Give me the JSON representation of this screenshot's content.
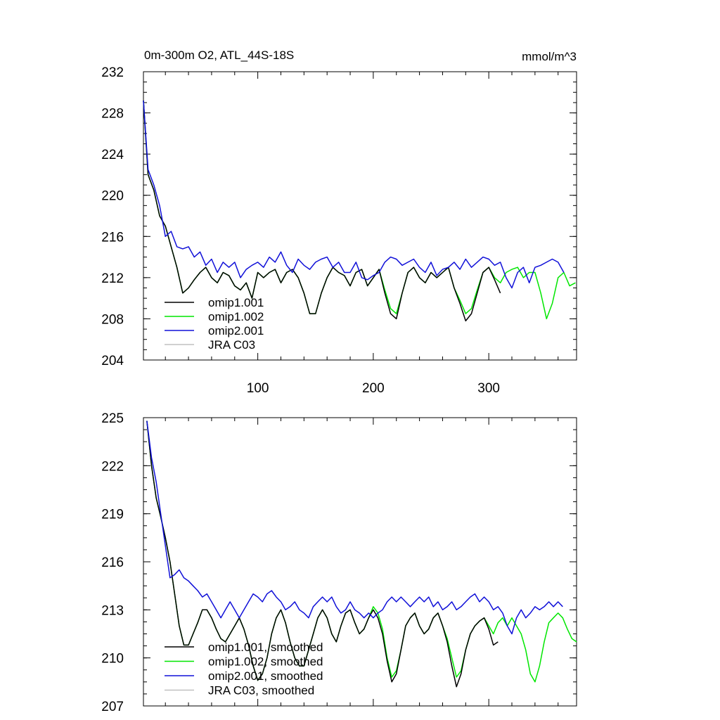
{
  "chart_data": [
    {
      "type": "line",
      "title": "0m-300m O2, ATL_44S-18S",
      "units": "mmol/m^3",
      "xlim": [
        1,
        376
      ],
      "ylim": [
        204,
        232
      ],
      "yticks": [
        "204",
        "208",
        "212",
        "216",
        "220",
        "224",
        "228",
        "232"
      ],
      "xticks": [
        "100",
        "200",
        "300"
      ],
      "legend": [
        "omip1.001",
        "omip1.002",
        "omip2.001",
        "JRA C03"
      ],
      "series": [
        {
          "name": "omip1.001",
          "color": "#000000",
          "x": [
            1,
            5,
            10,
            15,
            20,
            25,
            30,
            35,
            40,
            45,
            50,
            55,
            60,
            65,
            70,
            75,
            80,
            85,
            90,
            95,
            100,
            105,
            110,
            115,
            120,
            125,
            130,
            135,
            140,
            145,
            150,
            155,
            160,
            165,
            170,
            175,
            180,
            185,
            190,
            195,
            200,
            205,
            210,
            215,
            220,
            225,
            230,
            235,
            240,
            245,
            250,
            255,
            260,
            265,
            270,
            275,
            280,
            285,
            290,
            295,
            300,
            305,
            310
          ],
          "y": [
            229.2,
            222.0,
            220.5,
            218.0,
            217.0,
            215.0,
            213.0,
            210.5,
            211.0,
            211.8,
            212.5,
            213.0,
            212.0,
            211.5,
            212.5,
            212.2,
            211.2,
            210.8,
            211.5,
            210.0,
            212.5,
            212.0,
            212.5,
            212.8,
            211.5,
            212.5,
            212.8,
            212.0,
            210.5,
            208.5,
            208.5,
            210.5,
            212.0,
            213.0,
            212.5,
            212.2,
            211.2,
            212.5,
            212.8,
            211.2,
            212.0,
            212.8,
            210.5,
            208.5,
            208.0,
            210.5,
            212.5,
            213.0,
            212.0,
            211.5,
            212.5,
            212.0,
            212.5,
            213.0,
            211.0,
            209.5,
            207.8,
            208.5,
            210.5,
            212.5,
            213.0,
            211.8,
            210.5
          ]
        },
        {
          "name": "omip1.002",
          "color": "#00e600",
          "x": [
            1,
            5,
            10,
            15,
            20,
            25,
            30,
            35,
            40,
            45,
            50,
            55,
            60,
            65,
            70,
            75,
            80,
            85,
            90,
            95,
            100,
            105,
            110,
            115,
            120,
            125,
            130,
            135,
            140,
            145,
            150,
            155,
            160,
            165,
            170,
            175,
            180,
            185,
            190,
            195,
            200,
            205,
            210,
            215,
            220,
            225,
            230,
            235,
            240,
            245,
            250,
            255,
            260,
            265,
            270,
            275,
            280,
            285,
            290,
            295,
            300,
            305,
            310,
            315,
            320,
            325,
            330,
            335,
            340,
            345,
            350,
            355,
            360,
            365,
            370,
            375
          ],
          "y": [
            229.2,
            222.0,
            220.5,
            218.0,
            217.0,
            215.0,
            213.0,
            210.5,
            211.0,
            211.8,
            212.5,
            213.0,
            212.0,
            211.5,
            212.5,
            212.2,
            211.2,
            210.8,
            211.5,
            210.0,
            212.5,
            212.0,
            212.5,
            212.8,
            211.5,
            212.5,
            212.8,
            212.0,
            210.5,
            208.5,
            208.5,
            210.5,
            212.0,
            213.0,
            212.5,
            212.2,
            211.2,
            212.5,
            212.8,
            211.2,
            212.0,
            212.8,
            210.8,
            209.0,
            208.5,
            210.5,
            212.5,
            213.0,
            212.0,
            211.5,
            212.5,
            212.0,
            212.5,
            213.0,
            211.0,
            209.8,
            208.5,
            209.0,
            210.8,
            212.5,
            213.0,
            212.0,
            211.5,
            212.5,
            212.8,
            213.0,
            212.0,
            212.5,
            212.5,
            210.5,
            208.0,
            209.5,
            212.0,
            212.5,
            211.2,
            211.5
          ]
        },
        {
          "name": "omip2.001",
          "color": "#1010d8",
          "x": [
            1,
            5,
            10,
            15,
            20,
            25,
            30,
            35,
            40,
            45,
            50,
            55,
            60,
            65,
            70,
            75,
            80,
            85,
            90,
            95,
            100,
            105,
            110,
            115,
            120,
            125,
            130,
            135,
            140,
            145,
            150,
            155,
            160,
            165,
            170,
            175,
            180,
            185,
            190,
            195,
            200,
            205,
            210,
            215,
            220,
            225,
            230,
            235,
            240,
            245,
            250,
            255,
            260,
            265,
            270,
            275,
            280,
            285,
            290,
            295,
            300,
            305,
            310,
            315,
            320,
            325,
            330,
            335,
            340,
            345,
            350,
            355,
            360,
            365
          ],
          "y": [
            229.2,
            222.5,
            221.0,
            219.0,
            216.0,
            216.5,
            215.0,
            214.8,
            215.0,
            214.0,
            214.5,
            213.2,
            213.8,
            212.5,
            213.5,
            213.0,
            213.5,
            212.0,
            212.8,
            213.2,
            213.5,
            213.0,
            214.0,
            213.5,
            214.5,
            213.2,
            212.5,
            213.8,
            213.2,
            212.8,
            213.5,
            213.8,
            214.0,
            213.0,
            213.5,
            212.5,
            212.5,
            213.5,
            212.0,
            211.8,
            212.2,
            212.5,
            213.5,
            214.0,
            213.8,
            213.2,
            213.5,
            213.8,
            213.0,
            212.5,
            213.5,
            212.2,
            212.8,
            213.0,
            213.5,
            212.8,
            213.8,
            213.0,
            213.5,
            214.0,
            213.8,
            213.2,
            213.5,
            212.0,
            211.0,
            212.5,
            213.0,
            211.5,
            213.0,
            213.2,
            213.5,
            213.8,
            213.5,
            212.5
          ]
        },
        {
          "name": "JRA C03",
          "color": "#c0c0c0",
          "x": [],
          "y": []
        }
      ]
    },
    {
      "type": "line",
      "xlim": [
        1,
        376
      ],
      "ylim": [
        207,
        225
      ],
      "yticks": [
        "207",
        "210",
        "213",
        "216",
        "219",
        "222",
        "225"
      ],
      "legend": [
        "omip1.001, smoothed",
        "omip1.002, smoothed",
        "omip2.001, smoothed",
        "JRA C03, smoothed"
      ],
      "series": [
        {
          "name": "omip1.001, smoothed",
          "color": "#000000",
          "x": [
            4,
            8,
            12,
            16,
            20,
            24,
            28,
            32,
            36,
            40,
            44,
            48,
            52,
            56,
            60,
            64,
            68,
            72,
            76,
            80,
            84,
            88,
            92,
            96,
            100,
            104,
            108,
            112,
            116,
            120,
            124,
            128,
            132,
            136,
            140,
            144,
            148,
            152,
            156,
            160,
            164,
            168,
            172,
            176,
            180,
            184,
            188,
            192,
            196,
            200,
            204,
            208,
            212,
            216,
            220,
            224,
            228,
            232,
            236,
            240,
            244,
            248,
            252,
            256,
            260,
            264,
            268,
            272,
            276,
            280,
            284,
            288,
            292,
            296,
            300,
            304,
            308
          ],
          "y": [
            224.8,
            222.0,
            220.0,
            218.8,
            217.5,
            216.0,
            214.0,
            212.0,
            210.8,
            210.8,
            211.5,
            212.2,
            213.0,
            213.0,
            212.5,
            211.8,
            211.2,
            211.0,
            211.5,
            212.0,
            212.5,
            211.8,
            210.8,
            209.5,
            208.6,
            209.0,
            210.0,
            211.5,
            212.5,
            213.0,
            212.2,
            211.0,
            210.0,
            209.5,
            209.5,
            210.5,
            211.5,
            212.5,
            213.0,
            212.5,
            211.5,
            211.0,
            212.0,
            212.8,
            213.0,
            212.2,
            211.5,
            211.8,
            212.5,
            213.0,
            212.5,
            211.5,
            209.8,
            208.5,
            209.0,
            210.5,
            212.0,
            212.5,
            212.8,
            212.0,
            211.5,
            211.8,
            212.5,
            212.8,
            212.0,
            211.0,
            209.5,
            208.2,
            209.0,
            210.5,
            211.5,
            212.0,
            212.3,
            212.5,
            211.8,
            210.8,
            211.0
          ]
        },
        {
          "name": "omip1.002, smoothed",
          "color": "#00e600",
          "x": [
            4,
            8,
            12,
            16,
            20,
            24,
            28,
            32,
            36,
            40,
            44,
            48,
            52,
            56,
            60,
            64,
            68,
            72,
            76,
            80,
            84,
            88,
            92,
            96,
            100,
            104,
            108,
            112,
            116,
            120,
            124,
            128,
            132,
            136,
            140,
            144,
            148,
            152,
            156,
            160,
            164,
            168,
            172,
            176,
            180,
            184,
            188,
            192,
            196,
            200,
            204,
            208,
            212,
            216,
            220,
            224,
            228,
            232,
            236,
            240,
            244,
            248,
            252,
            256,
            260,
            264,
            268,
            272,
            276,
            280,
            284,
            288,
            292,
            296,
            300,
            304,
            308,
            312,
            316,
            320,
            324,
            328,
            332,
            336,
            340,
            344,
            348,
            352,
            356,
            360,
            364,
            368,
            372,
            376
          ],
          "y": [
            224.8,
            222.0,
            220.0,
            218.8,
            217.5,
            216.0,
            214.0,
            212.0,
            210.8,
            210.8,
            211.5,
            212.2,
            213.0,
            213.0,
            212.5,
            211.8,
            211.2,
            211.0,
            211.5,
            212.0,
            212.5,
            211.8,
            210.8,
            209.5,
            208.6,
            209.0,
            210.0,
            211.5,
            212.5,
            213.0,
            212.2,
            211.0,
            210.0,
            209.5,
            209.5,
            210.5,
            211.5,
            212.5,
            213.0,
            212.5,
            211.5,
            211.0,
            212.0,
            212.8,
            213.0,
            212.2,
            211.5,
            211.8,
            212.5,
            213.2,
            212.8,
            211.8,
            210.0,
            208.8,
            209.2,
            210.5,
            212.0,
            212.5,
            212.8,
            212.0,
            211.5,
            211.8,
            212.5,
            212.8,
            212.0,
            211.2,
            210.0,
            208.8,
            209.2,
            210.5,
            211.5,
            212.0,
            212.3,
            212.5,
            212.0,
            211.5,
            212.2,
            212.5,
            212.0,
            212.5,
            212.0,
            211.5,
            210.5,
            209.0,
            208.5,
            209.5,
            211.0,
            212.2,
            212.5,
            212.8,
            212.5,
            211.8,
            211.2,
            211.0
          ]
        },
        {
          "name": "omip2.001, smoothed",
          "color": "#1010d8",
          "x": [
            4,
            8,
            12,
            16,
            20,
            24,
            28,
            32,
            36,
            40,
            44,
            48,
            52,
            56,
            60,
            64,
            68,
            72,
            76,
            80,
            84,
            88,
            92,
            96,
            100,
            104,
            108,
            112,
            116,
            120,
            124,
            128,
            132,
            136,
            140,
            144,
            148,
            152,
            156,
            160,
            164,
            168,
            172,
            176,
            180,
            184,
            188,
            192,
            196,
            200,
            204,
            208,
            212,
            216,
            220,
            224,
            228,
            232,
            236,
            240,
            244,
            248,
            252,
            256,
            260,
            264,
            268,
            272,
            276,
            280,
            284,
            288,
            292,
            296,
            300,
            304,
            308,
            312,
            316,
            320,
            324,
            328,
            332,
            336,
            340,
            344,
            348,
            352,
            356,
            360,
            364
          ],
          "y": [
            224.8,
            222.5,
            221.0,
            219.0,
            217.0,
            215.0,
            215.2,
            215.5,
            215.0,
            214.8,
            214.5,
            214.2,
            213.8,
            214.0,
            213.5,
            213.0,
            212.5,
            213.0,
            213.5,
            213.0,
            212.5,
            213.0,
            213.5,
            214.0,
            213.8,
            213.5,
            214.0,
            214.2,
            213.8,
            213.5,
            213.0,
            213.2,
            213.5,
            213.0,
            212.8,
            212.5,
            213.2,
            213.5,
            213.8,
            213.5,
            213.8,
            213.2,
            212.8,
            213.0,
            213.5,
            213.0,
            212.8,
            212.5,
            212.8,
            212.5,
            212.8,
            213.0,
            213.5,
            213.8,
            213.5,
            213.8,
            213.5,
            213.2,
            213.5,
            213.8,
            213.5,
            213.8,
            213.2,
            213.5,
            213.0,
            213.2,
            213.5,
            213.0,
            213.2,
            213.5,
            213.8,
            214.0,
            213.5,
            213.8,
            213.5,
            213.0,
            213.2,
            212.8,
            212.0,
            211.5,
            212.5,
            213.0,
            212.5,
            212.8,
            213.2,
            213.0,
            213.2,
            213.5,
            213.2,
            213.5,
            213.2
          ]
        },
        {
          "name": "JRA C03, smoothed",
          "color": "#c0c0c0",
          "x": [],
          "y": []
        }
      ]
    }
  ]
}
